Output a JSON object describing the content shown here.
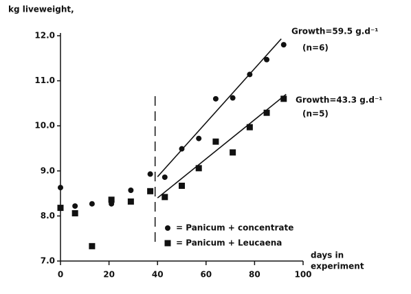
{
  "chart_data": {
    "type": "scatter",
    "y_label": "kg liveweight,",
    "x_label": [
      "days in",
      "experiment"
    ],
    "xlim": [
      0,
      100
    ],
    "xticks": [
      0,
      20,
      40,
      60,
      80,
      100
    ],
    "ylim": [
      7,
      12
    ],
    "yticks": [
      {
        "value": 7,
        "label": "7.0"
      },
      {
        "value": 8,
        "label": "8.0"
      },
      {
        "value": 9,
        "label": "9.0"
      },
      {
        "value": 10,
        "label": "10.0"
      },
      {
        "value": 11,
        "label": "11.0"
      },
      {
        "value": 12,
        "label": "12.0"
      }
    ],
    "series": [
      {
        "name": "= Panicum + concentrate",
        "marker": "circle",
        "color": "#111111",
        "x": [
          0,
          6,
          13,
          21,
          29,
          37,
          43,
          50,
          57,
          64,
          71,
          78,
          85,
          92
        ],
        "values": [
          8.63,
          8.22,
          8.27,
          8.27,
          8.57,
          8.93,
          8.86,
          9.49,
          9.72,
          10.6,
          10.62,
          11.14,
          11.47,
          11.8
        ]
      },
      {
        "name": "= Panicum + Leucaena",
        "marker": "square",
        "color": "#111111",
        "x": [
          0,
          6,
          13,
          21,
          29,
          37,
          43,
          50,
          57,
          64,
          71,
          78,
          85,
          92
        ],
        "values": [
          8.18,
          8.06,
          7.33,
          8.36,
          8.32,
          8.55,
          8.42,
          8.67,
          9.06,
          9.65,
          9.41,
          9.97,
          10.29,
          10.6
        ]
      }
    ],
    "trendlines": [
      {
        "x": [
          40,
          91
        ],
        "values": [
          8.87,
          11.93
        ],
        "label": "Growth=59.5 g.d⁻¹",
        "n_label": "(n=6)"
      },
      {
        "x": [
          40,
          93
        ],
        "values": [
          8.4,
          10.7
        ],
        "label": "Growth=43.3 g.d⁻¹",
        "n_label": "(n=5)"
      }
    ],
    "divider_x": 39
  }
}
